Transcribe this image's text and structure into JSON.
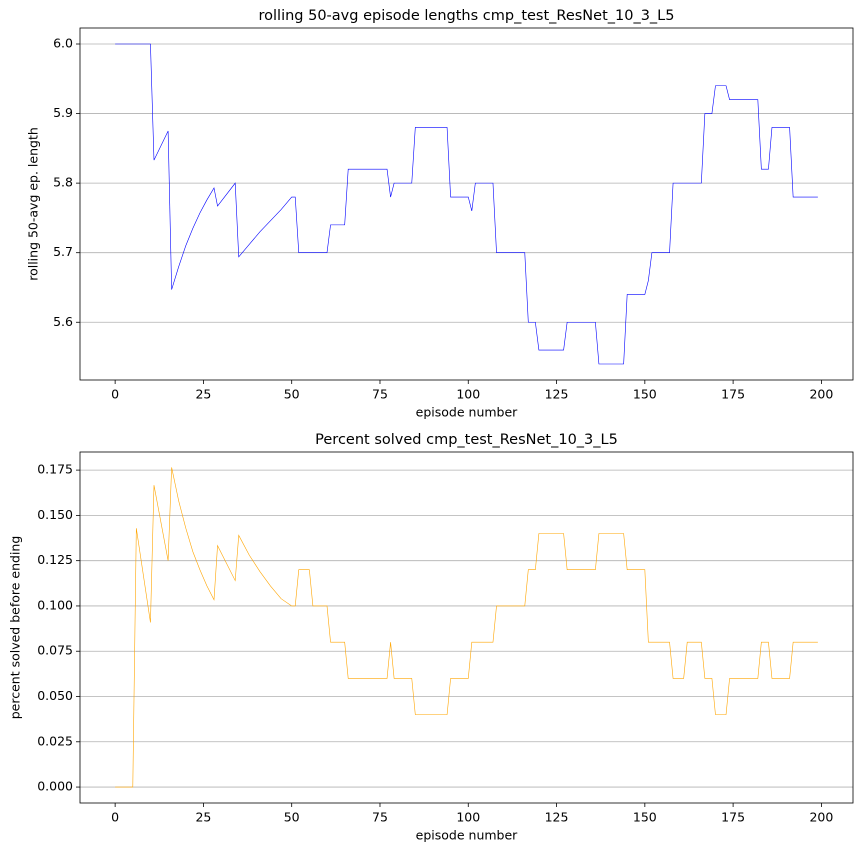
{
  "chart_data": [
    {
      "type": "line",
      "title": "rolling 50-avg episode lengths cmp_test_ResNet_10_3_L5",
      "x_label": "episode number",
      "y_label": "rolling 50-avg ep. length",
      "xlim": [
        -9.95,
        208.95
      ],
      "xticks": [
        0,
        25,
        50,
        75,
        100,
        125,
        150,
        175,
        200
      ],
      "ylim": [
        5.517,
        6.023
      ],
      "yticks": [
        {
          "value": 5.6,
          "label": "5.6"
        },
        {
          "value": 5.7,
          "label": "5.7"
        },
        {
          "value": 5.8,
          "label": "5.8"
        },
        {
          "value": 5.9,
          "label": "5.9"
        },
        {
          "value": 6.0,
          "label": "6.0"
        }
      ],
      "grid": "y",
      "series": [
        {
          "color": "#0000ff",
          "x": [
            0,
            10,
            11,
            15,
            16,
            18,
            20,
            22,
            24,
            26,
            28,
            29,
            34,
            35,
            38,
            41,
            44,
            47,
            50,
            51,
            52,
            60,
            61,
            65,
            66,
            77,
            78,
            79,
            84,
            85,
            94,
            95,
            100,
            101,
            102,
            107,
            108,
            116,
            117,
            119,
            120,
            127,
            128,
            136,
            137,
            144,
            145,
            150,
            151,
            152,
            157,
            158,
            166,
            167,
            169,
            170,
            173,
            174,
            182,
            183,
            185,
            186,
            191,
            192,
            199
          ],
          "values": [
            6.0,
            6.0,
            5.833,
            5.875,
            5.647,
            5.68,
            5.71,
            5.735,
            5.757,
            5.776,
            5.793,
            5.767,
            5.8,
            5.694,
            5.712,
            5.73,
            5.746,
            5.762,
            5.78,
            5.78,
            5.7,
            5.7,
            5.74,
            5.74,
            5.82,
            5.82,
            5.78,
            5.8,
            5.8,
            5.88,
            5.88,
            5.78,
            5.78,
            5.76,
            5.8,
            5.8,
            5.7,
            5.7,
            5.6,
            5.6,
            5.56,
            5.56,
            5.6,
            5.6,
            5.54,
            5.54,
            5.64,
            5.64,
            5.66,
            5.7,
            5.7,
            5.8,
            5.8,
            5.9,
            5.9,
            5.94,
            5.94,
            5.92,
            5.92,
            5.82,
            5.82,
            5.88,
            5.88,
            5.78,
            5.78
          ]
        }
      ]
    },
    {
      "type": "line",
      "title": "Percent solved cmp_test_ResNet_10_3_L5",
      "x_label": "episode number",
      "y_label": "percent solved before ending",
      "xlim": [
        -9.95,
        208.95
      ],
      "xticks": [
        0,
        25,
        50,
        75,
        100,
        125,
        150,
        175,
        200
      ],
      "ylim": [
        -0.0088,
        0.185
      ],
      "yticks": [
        {
          "value": 0,
          "label": "0.000"
        },
        {
          "value": 0.025,
          "label": "0.025"
        },
        {
          "value": 0.05,
          "label": "0.050"
        },
        {
          "value": 0.075,
          "label": "0.075"
        },
        {
          "value": 0.1,
          "label": "0.100"
        },
        {
          "value": 0.125,
          "label": "0.125"
        },
        {
          "value": 0.15,
          "label": "0.150"
        },
        {
          "value": 0.175,
          "label": "0.175"
        }
      ],
      "grid": "y",
      "series": [
        {
          "color": "#ffa500",
          "x": [
            0,
            5,
            6,
            10,
            11,
            15,
            16,
            18,
            20,
            22,
            24,
            26,
            28,
            29,
            34,
            35,
            38,
            41,
            44,
            47,
            50,
            51,
            52,
            55,
            56,
            60,
            61,
            65,
            66,
            77,
            78,
            79,
            84,
            85,
            94,
            95,
            100,
            101,
            107,
            108,
            116,
            117,
            119,
            120,
            127,
            128,
            136,
            137,
            144,
            145,
            150,
            151,
            157,
            158,
            161,
            162,
            166,
            167,
            169,
            170,
            173,
            174,
            182,
            183,
            185,
            186,
            191,
            192,
            199
          ],
          "values": [
            0,
            0,
            0.1429,
            0.0909,
            0.1667,
            0.125,
            0.1765,
            0.158,
            0.143,
            0.13,
            0.12,
            0.111,
            0.1034,
            0.1333,
            0.114,
            0.139,
            0.128,
            0.119,
            0.111,
            0.104,
            0.1,
            0.1,
            0.12,
            0.12,
            0.1,
            0.1,
            0.08,
            0.08,
            0.06,
            0.06,
            0.08,
            0.06,
            0.06,
            0.04,
            0.04,
            0.06,
            0.06,
            0.08,
            0.08,
            0.1,
            0.1,
            0.12,
            0.12,
            0.14,
            0.14,
            0.12,
            0.12,
            0.14,
            0.14,
            0.12,
            0.12,
            0.08,
            0.08,
            0.06,
            0.06,
            0.08,
            0.08,
            0.06,
            0.06,
            0.04,
            0.04,
            0.06,
            0.06,
            0.08,
            0.08,
            0.06,
            0.06,
            0.08,
            0.08
          ]
        }
      ]
    }
  ]
}
